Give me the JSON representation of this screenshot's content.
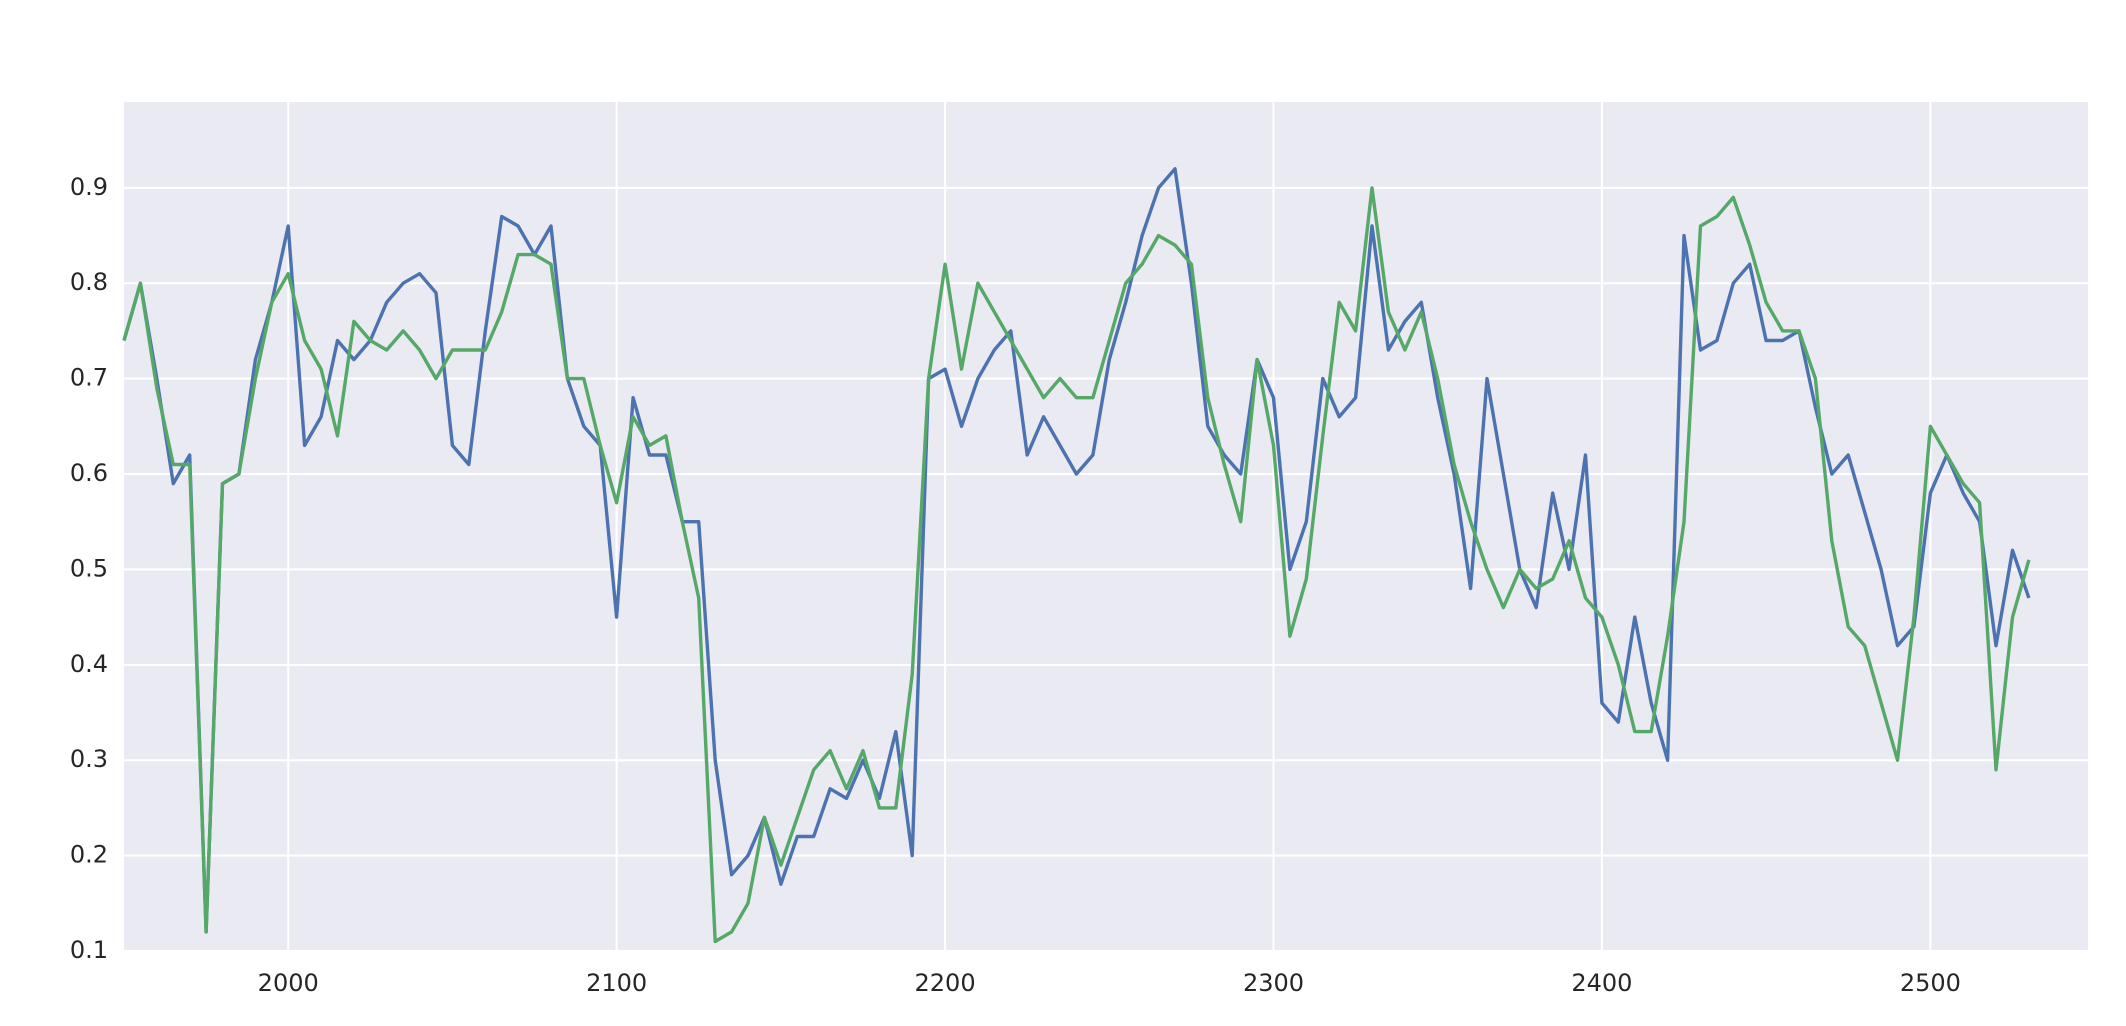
{
  "chart_data": {
    "type": "line",
    "x": [
      1950,
      1955,
      1960,
      1965,
      1970,
      1975,
      1980,
      1985,
      1990,
      1995,
      2000,
      2005,
      2010,
      2015,
      2020,
      2025,
      2030,
      2035,
      2040,
      2045,
      2050,
      2055,
      2060,
      2065,
      2070,
      2075,
      2080,
      2085,
      2090,
      2095,
      2100,
      2105,
      2110,
      2115,
      2120,
      2125,
      2130,
      2135,
      2140,
      2145,
      2150,
      2155,
      2160,
      2165,
      2170,
      2175,
      2180,
      2185,
      2190,
      2195,
      2200,
      2205,
      2210,
      2215,
      2220,
      2225,
      2230,
      2235,
      2240,
      2245,
      2250,
      2255,
      2260,
      2265,
      2270,
      2275,
      2280,
      2285,
      2290,
      2295,
      2300,
      2305,
      2310,
      2315,
      2320,
      2325,
      2330,
      2335,
      2340,
      2345,
      2350,
      2355,
      2360,
      2365,
      2370,
      2375,
      2380,
      2385,
      2390,
      2395,
      2400,
      2405,
      2410,
      2415,
      2420,
      2425,
      2430,
      2435,
      2440,
      2445,
      2450,
      2455,
      2460,
      2465,
      2470,
      2475,
      2480,
      2485,
      2490,
      2495,
      2500,
      2505,
      2510,
      2515,
      2520,
      2525,
      2530
    ],
    "series": [
      {
        "color": "#4c72b0",
        "values": [
          0.74,
          0.8,
          0.7,
          0.59,
          0.62,
          0.12,
          0.59,
          0.6,
          0.72,
          0.78,
          0.86,
          0.63,
          0.66,
          0.74,
          0.72,
          0.74,
          0.78,
          0.8,
          0.81,
          0.79,
          0.63,
          0.61,
          0.75,
          0.87,
          0.86,
          0.83,
          0.86,
          0.7,
          0.65,
          0.63,
          0.45,
          0.68,
          0.62,
          0.62,
          0.55,
          0.55,
          0.3,
          0.18,
          0.2,
          0.24,
          0.17,
          0.22,
          0.22,
          0.27,
          0.26,
          0.3,
          0.26,
          0.33,
          0.2,
          0.7,
          0.71,
          0.65,
          0.7,
          0.73,
          0.75,
          0.62,
          0.66,
          0.63,
          0.6,
          0.62,
          0.72,
          0.78,
          0.85,
          0.9,
          0.92,
          0.8,
          0.65,
          0.62,
          0.6,
          0.72,
          0.68,
          0.5,
          0.55,
          0.7,
          0.66,
          0.68,
          0.86,
          0.73,
          0.76,
          0.78,
          0.68,
          0.6,
          0.48,
          0.7,
          0.6,
          0.5,
          0.46,
          0.58,
          0.5,
          0.62,
          0.36,
          0.34,
          0.45,
          0.36,
          0.3,
          0.85,
          0.73,
          0.74,
          0.8,
          0.82,
          0.74,
          0.74,
          0.75,
          0.67,
          0.6,
          0.62,
          0.56,
          0.5,
          0.42,
          0.44,
          0.58,
          0.62,
          0.58,
          0.55,
          0.42,
          0.52,
          0.47
        ]
      },
      {
        "color": "#55a868",
        "values": [
          0.74,
          0.8,
          0.69,
          0.61,
          0.61,
          0.12,
          0.59,
          0.6,
          0.7,
          0.78,
          0.81,
          0.74,
          0.71,
          0.64,
          0.76,
          0.74,
          0.73,
          0.75,
          0.73,
          0.7,
          0.73,
          0.73,
          0.73,
          0.77,
          0.83,
          0.83,
          0.82,
          0.7,
          0.7,
          0.63,
          0.57,
          0.66,
          0.63,
          0.64,
          0.55,
          0.47,
          0.11,
          0.12,
          0.15,
          0.24,
          0.19,
          0.24,
          0.29,
          0.31,
          0.27,
          0.31,
          0.25,
          0.25,
          0.39,
          0.7,
          0.82,
          0.71,
          0.8,
          0.77,
          0.74,
          0.71,
          0.68,
          0.7,
          0.68,
          0.68,
          0.74,
          0.8,
          0.82,
          0.85,
          0.84,
          0.82,
          0.68,
          0.61,
          0.55,
          0.72,
          0.63,
          0.43,
          0.49,
          0.64,
          0.78,
          0.75,
          0.9,
          0.77,
          0.73,
          0.77,
          0.7,
          0.61,
          0.55,
          0.5,
          0.46,
          0.5,
          0.48,
          0.49,
          0.53,
          0.47,
          0.45,
          0.4,
          0.33,
          0.33,
          0.43,
          0.55,
          0.86,
          0.87,
          0.89,
          0.84,
          0.78,
          0.75,
          0.75,
          0.7,
          0.53,
          0.44,
          0.42,
          0.36,
          0.3,
          0.45,
          0.65,
          0.62,
          0.59,
          0.57,
          0.29,
          0.45,
          0.51
        ]
      }
    ],
    "xlim": [
      1950,
      2548
    ],
    "ylim": [
      0.1,
      0.99
    ],
    "xticks": [
      2000,
      2100,
      2200,
      2300,
      2400,
      2500
    ],
    "yticks": [
      0.1,
      0.2,
      0.3,
      0.4,
      0.5,
      0.6,
      0.7,
      0.8,
      0.9
    ],
    "grid": true
  }
}
